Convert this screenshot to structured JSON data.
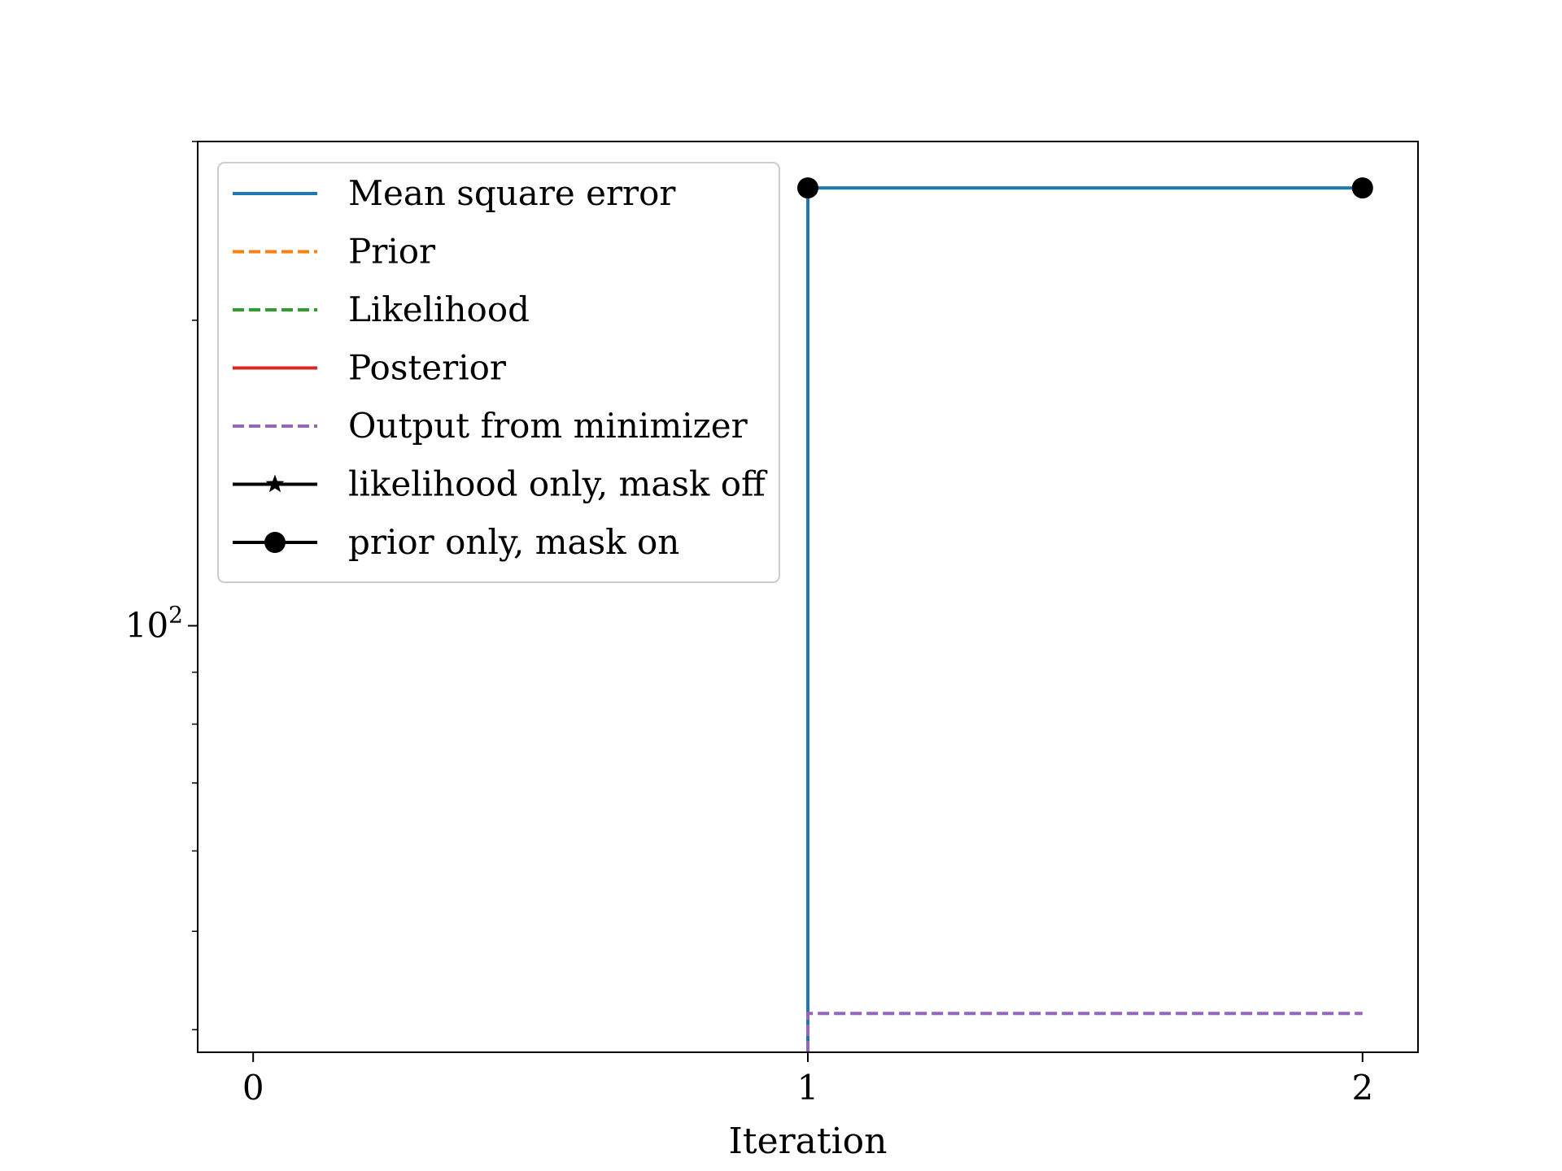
{
  "chart_data": {
    "type": "line",
    "title": "",
    "xlabel": "Iteration",
    "ylabel": "",
    "xlim": [
      -0.1,
      2.1
    ],
    "ylim": [
      38,
      300
    ],
    "yscale": "log",
    "grid": false,
    "legend_position": "top-left",
    "xticks": [
      0,
      1,
      2
    ],
    "xtick_labels": [
      "0",
      "1",
      "2"
    ],
    "yticks_major": [
      100
    ],
    "ytick_label_base": "10",
    "ytick_label_exp": "2",
    "yticks_minor": [
      40,
      50,
      60,
      70,
      80,
      90,
      200,
      300
    ],
    "series": [
      {
        "name": "Mean square error",
        "color": "#1f77b4",
        "dash": "solid",
        "marker": "none",
        "step": true,
        "x": [
          1,
          1,
          2
        ],
        "y": [
          38,
          270,
          270
        ]
      },
      {
        "name": "Prior",
        "color": "#ff7f0e",
        "dash": "dashed",
        "marker": "none",
        "step": true,
        "x": [],
        "y": []
      },
      {
        "name": "Likelihood",
        "color": "#2ca02c",
        "dash": "dashed",
        "marker": "none",
        "step": true,
        "x": [],
        "y": []
      },
      {
        "name": "Posterior",
        "color": "#d62728",
        "dash": "solid",
        "marker": "none",
        "step": true,
        "x": [],
        "y": []
      },
      {
        "name": "Output from minimizer",
        "color": "#9467bd",
        "dash": "dashed",
        "marker": "none",
        "step": true,
        "x": [
          1,
          1,
          2
        ],
        "y": [
          38,
          41.5,
          41.5
        ]
      },
      {
        "name": "likelihood only, mask off",
        "color": "#000000",
        "dash": "solid",
        "marker": "star",
        "step": false,
        "x": [],
        "y": []
      },
      {
        "name": "prior only, mask on",
        "color": "#000000",
        "dash": "solid",
        "marker": "circle",
        "step": false,
        "x": [
          1,
          2
        ],
        "y": [
          270,
          270
        ]
      }
    ]
  }
}
